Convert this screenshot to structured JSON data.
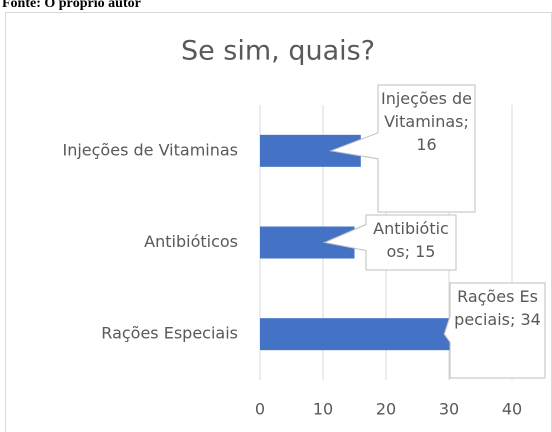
{
  "source": "Fonte: O próprio autor",
  "chart_data": {
    "type": "hbar",
    "title": "Se sim, quais?",
    "categories": [
      "Injeções de Vitaminas",
      "Antibióticos",
      "Rações Especiais"
    ],
    "values": [
      16,
      15,
      34
    ],
    "value_labels": [
      "Injeções de Vitaminas; 16",
      "Antibióticos; 15",
      "Rações Especiais; 34"
    ],
    "color": "#4472c4",
    "xlim": [
      0,
      40
    ],
    "xticks": [
      0,
      10,
      20,
      30,
      40
    ],
    "grid": true
  }
}
